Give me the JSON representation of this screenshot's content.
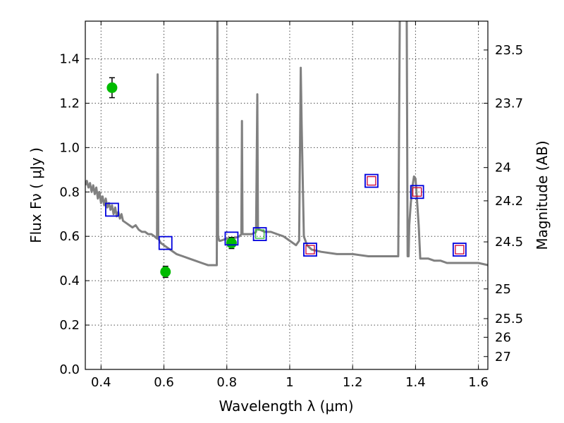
{
  "chart_data": {
    "type": "line",
    "xlabel": "Wavelength  λ (μm)",
    "ylabel": "Flux  Fν  ( μJy )",
    "ylabel_right": "Magnitude (AB)",
    "xlim": [
      0.35,
      1.63
    ],
    "ylim": [
      0.0,
      1.57
    ],
    "grid": true,
    "x_ticks": [
      0.4,
      0.6,
      0.8,
      1.0,
      1.2,
      1.4,
      1.6
    ],
    "x_tick_labels": [
      "0.4",
      "0.6",
      "0.8",
      "1",
      "1.2",
      "1.4",
      "1.6"
    ],
    "y_ticks": [
      0.0,
      0.2,
      0.4,
      0.6,
      0.8,
      1.0,
      1.2,
      1.4
    ],
    "y_tick_labels": [
      "0.0",
      "0.2",
      "0.4",
      "0.6",
      "0.8",
      "1.0",
      "1.2",
      "1.4"
    ],
    "right_ticks": [
      {
        "flux": 1.44,
        "label": "23.5"
      },
      {
        "flux": 1.2,
        "label": "23.7"
      },
      {
        "flux": 0.91,
        "label": "24"
      },
      {
        "flux": 0.76,
        "label": "24.2"
      },
      {
        "flux": 0.575,
        "label": "24.5"
      },
      {
        "flux": 0.363,
        "label": "25"
      },
      {
        "flux": 0.229,
        "label": "25.5"
      },
      {
        "flux": 0.145,
        "label": "26"
      },
      {
        "flux": 0.058,
        "label": "27"
      }
    ],
    "series": [
      {
        "type": "line",
        "color": "#808080",
        "x": [
          0.35,
          0.355,
          0.36,
          0.365,
          0.37,
          0.375,
          0.38,
          0.385,
          0.39,
          0.395,
          0.4,
          0.405,
          0.41,
          0.415,
          0.42,
          0.425,
          0.43,
          0.435,
          0.44,
          0.445,
          0.45,
          0.455,
          0.46,
          0.465,
          0.47,
          0.48,
          0.49,
          0.5,
          0.51,
          0.52,
          0.53,
          0.54,
          0.55,
          0.56,
          0.57,
          0.578,
          0.58,
          0.582,
          0.59,
          0.6,
          0.62,
          0.64,
          0.66,
          0.68,
          0.7,
          0.72,
          0.74,
          0.76,
          0.768,
          0.77,
          0.772,
          0.776,
          0.78,
          0.8,
          0.82,
          0.84,
          0.846,
          0.848,
          0.85,
          0.852,
          0.856,
          0.86,
          0.88,
          0.893,
          0.897,
          0.899,
          0.901,
          0.905,
          0.92,
          0.94,
          0.96,
          0.98,
          1.0,
          1.02,
          1.03,
          1.035,
          1.038,
          1.045,
          1.055,
          1.07,
          1.1,
          1.15,
          1.2,
          1.25,
          1.3,
          1.345,
          1.35,
          1.36,
          1.372,
          1.375,
          1.378,
          1.38,
          1.385,
          1.39,
          1.395,
          1.4,
          1.405,
          1.41,
          1.415,
          1.42,
          1.44,
          1.46,
          1.48,
          1.5,
          1.55,
          1.6,
          1.63
        ],
        "y": [
          0.83,
          0.85,
          0.82,
          0.84,
          0.8,
          0.83,
          0.79,
          0.82,
          0.77,
          0.8,
          0.75,
          0.78,
          0.74,
          0.77,
          0.73,
          0.75,
          0.72,
          0.74,
          0.7,
          0.73,
          0.69,
          0.71,
          0.68,
          0.7,
          0.67,
          0.66,
          0.65,
          0.64,
          0.65,
          0.63,
          0.62,
          0.62,
          0.61,
          0.61,
          0.6,
          0.59,
          1.33,
          0.59,
          0.57,
          0.56,
          0.54,
          0.52,
          0.51,
          0.5,
          0.49,
          0.48,
          0.47,
          0.47,
          0.47,
          1.6,
          0.6,
          0.58,
          0.58,
          0.59,
          0.59,
          0.6,
          0.61,
          1.12,
          0.61,
          0.61,
          0.61,
          0.61,
          0.61,
          0.62,
          1.24,
          0.64,
          0.63,
          0.63,
          0.62,
          0.62,
          0.61,
          0.6,
          0.58,
          0.56,
          0.58,
          1.36,
          1.1,
          0.6,
          0.56,
          0.54,
          0.53,
          0.52,
          0.52,
          0.51,
          0.51,
          0.51,
          1.6,
          1.6,
          1.6,
          0.51,
          0.51,
          0.65,
          0.75,
          0.82,
          0.87,
          0.86,
          0.76,
          0.65,
          0.5,
          0.5,
          0.5,
          0.49,
          0.49,
          0.48,
          0.48,
          0.48,
          0.47
        ]
      },
      {
        "name": "",
        "type": "scatter",
        "marker": "circle-errorbar",
        "color": "#00bb00",
        "x": [
          0.435,
          0.605,
          0.815
        ],
        "y": [
          1.27,
          0.44,
          0.57
        ],
        "err": [
          0.045,
          0.025,
          0.025
        ]
      },
      {
        "name": "",
        "type": "scatter",
        "marker": "square-large",
        "color": "#0000dd",
        "x": [
          0.435,
          0.605,
          0.815,
          0.905,
          1.065,
          1.26,
          1.405,
          1.54
        ],
        "y": [
          0.72,
          0.57,
          0.59,
          0.61,
          0.54,
          0.85,
          0.8,
          0.54
        ]
      },
      {
        "name": "",
        "type": "scatter",
        "marker": "square-small",
        "color": "#cc0033",
        "x": [
          1.065,
          1.26,
          1.405,
          1.54
        ],
        "y": [
          0.54,
          0.85,
          0.8,
          0.54
        ]
      },
      {
        "name": "",
        "type": "scatter",
        "marker": "square-small",
        "color": "#33bb33",
        "x": [
          0.905
        ],
        "y": [
          0.61
        ]
      }
    ]
  }
}
